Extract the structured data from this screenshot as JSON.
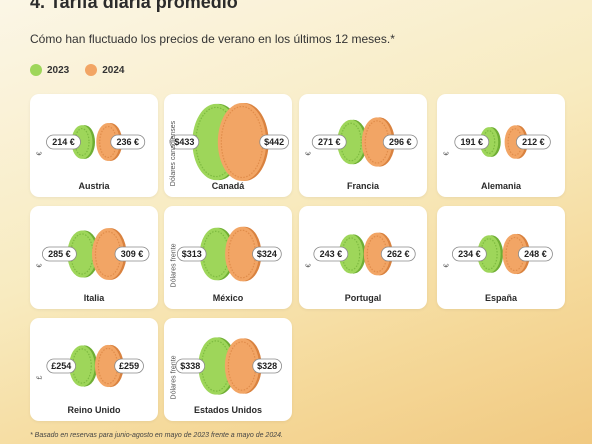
{
  "title": "4. Tarifa diaria promedio",
  "subtitle": "Cómo han fluctuado los precios de verano en los últimos 12 meses.*",
  "legend": [
    {
      "label": "2023",
      "color": "#9ed65a"
    },
    {
      "label": "2024",
      "color": "#f2a565"
    }
  ],
  "colors": {
    "c2023": "#9ed65a",
    "c2023_dark": "#6fae34",
    "c2024": "#f2a565",
    "c2024_dark": "#d9823f"
  },
  "footnote": "* Basado en reservas para junio-agosto en mayo de 2023 frente a mayo de 2024.",
  "chart_data": {
    "type": "bar",
    "title": "4. Tarifa diaria promedio",
    "subtitle": "Cómo han fluctuado los precios de verano en los últimos 12 meses.*",
    "series_names": [
      "2023",
      "2024"
    ],
    "categories": [
      {
        "country": "Austria",
        "unit": "€",
        "v2023": 214,
        "v2024": 236,
        "l2023": "214 €",
        "l2024": "236 €"
      },
      {
        "country": "Canadá",
        "unit": "Dólares canadienses",
        "v2023": 433,
        "v2024": 442,
        "l2023": "$433",
        "l2024": "$442"
      },
      {
        "country": "Francia",
        "unit": "€",
        "v2023": 271,
        "v2024": 296,
        "l2023": "271 €",
        "l2024": "296 €"
      },
      {
        "country": "Alemania",
        "unit": "€",
        "v2023": 191,
        "v2024": 212,
        "l2023": "191 €",
        "l2024": "212 €"
      },
      {
        "country": "Italia",
        "unit": "€",
        "v2023": 285,
        "v2024": 309,
        "l2023": "285 €",
        "l2024": "309 €"
      },
      {
        "country": "México",
        "unit": "Dólares frente",
        "v2023": 313,
        "v2024": 324,
        "l2023": "$313",
        "l2024": "$324"
      },
      {
        "country": "Portugal",
        "unit": "€",
        "v2023": 243,
        "v2024": 262,
        "l2023": "243 €",
        "l2024": "262 €"
      },
      {
        "country": "España",
        "unit": "€",
        "v2023": 234,
        "v2024": 248,
        "l2023": "234 €",
        "l2024": "248 €"
      },
      {
        "country": "Reino Unido",
        "unit": "£",
        "v2023": 254,
        "v2024": 259,
        "l2023": "£254",
        "l2024": "£259"
      },
      {
        "country": "Estados Unidos",
        "unit": "Dólares frente",
        "v2023": 338,
        "v2024": 328,
        "l2023": "$338",
        "l2024": "$328"
      }
    ]
  }
}
